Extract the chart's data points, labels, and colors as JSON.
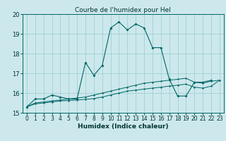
{
  "title": "Courbe de l'humidex pour Hel",
  "xlabel": "Humidex (Indice chaleur)",
  "bg_color": "#cce8ec",
  "grid_color": "#99cccc",
  "line_color": "#006666",
  "xlim": [
    -0.5,
    23.5
  ],
  "ylim": [
    15,
    20
  ],
  "yticks": [
    15,
    16,
    17,
    18,
    19,
    20
  ],
  "xticks": [
    0,
    1,
    2,
    3,
    4,
    5,
    6,
    7,
    8,
    9,
    10,
    11,
    12,
    13,
    14,
    15,
    16,
    17,
    18,
    19,
    20,
    21,
    22,
    23
  ],
  "series": [
    {
      "x": [
        0,
        1,
        2,
        3,
        4,
        5,
        6,
        7,
        8,
        9,
        10,
        11,
        12,
        13,
        14,
        15,
        16,
        17,
        18,
        19,
        20,
        21,
        22
      ],
      "y": [
        15.3,
        15.7,
        15.7,
        15.9,
        15.8,
        15.7,
        15.7,
        17.55,
        16.9,
        17.4,
        19.3,
        19.6,
        19.2,
        19.5,
        19.3,
        18.3,
        18.3,
        16.7,
        15.85,
        15.85,
        16.55,
        16.55,
        16.65
      ]
    },
    {
      "x": [
        0,
        1,
        2,
        3,
        4,
        5,
        6,
        7,
        8,
        9,
        10,
        11,
        12,
        13,
        14,
        15,
        16,
        17,
        18,
        19,
        20,
        21,
        22,
        23
      ],
      "y": [
        15.3,
        15.5,
        15.55,
        15.6,
        15.65,
        15.7,
        15.75,
        15.8,
        15.9,
        16.0,
        16.1,
        16.2,
        16.3,
        16.4,
        16.5,
        16.55,
        16.6,
        16.65,
        16.7,
        16.75,
        16.55,
        16.5,
        16.6,
        16.65
      ]
    },
    {
      "x": [
        0,
        1,
        2,
        3,
        4,
        5,
        6,
        7,
        8,
        9,
        10,
        11,
        12,
        13,
        14,
        15,
        16,
        17,
        18,
        19,
        20,
        21,
        22,
        23
      ],
      "y": [
        15.3,
        15.45,
        15.5,
        15.55,
        15.6,
        15.62,
        15.65,
        15.68,
        15.72,
        15.8,
        15.9,
        16.0,
        16.1,
        16.15,
        16.2,
        16.25,
        16.3,
        16.35,
        16.4,
        16.45,
        16.3,
        16.25,
        16.35,
        16.65
      ]
    }
  ]
}
